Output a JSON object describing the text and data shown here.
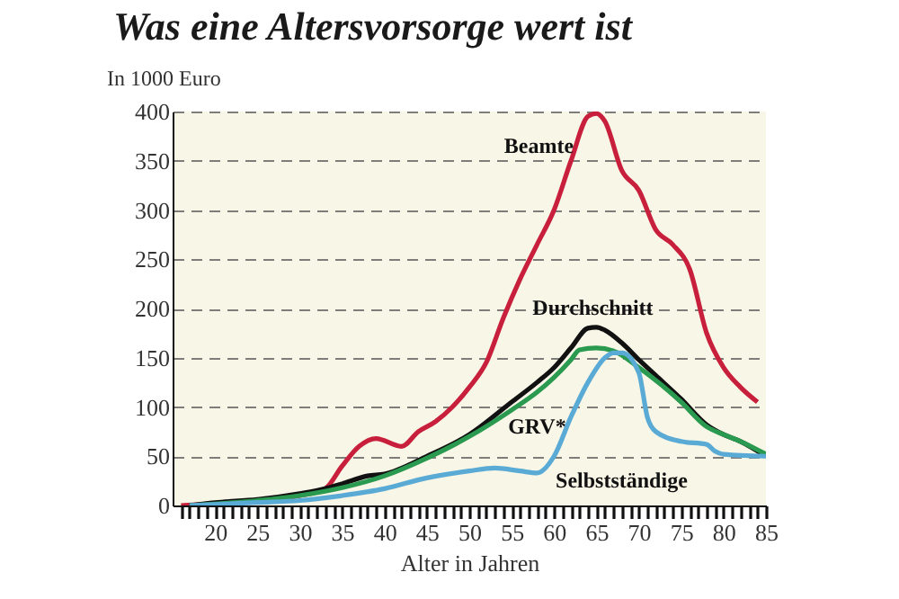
{
  "chart_data": {
    "type": "line",
    "title": "Was eine Altersvorsorge wert ist",
    "ylabel": "In 1000 Euro",
    "xlabel": "Alter in Jahren",
    "xlim": [
      15,
      85
    ],
    "ylim": [
      0,
      400
    ],
    "xticks": [
      {
        "value": 16,
        "label": null
      },
      {
        "value": 17,
        "label": null
      },
      {
        "value": 18,
        "label": null
      },
      {
        "value": 19,
        "label": null
      },
      20,
      {
        "value": 21,
        "label": null
      },
      {
        "value": 22,
        "label": null
      },
      {
        "value": 23,
        "label": null
      },
      {
        "value": 24,
        "label": null
      },
      25,
      {
        "value": 26,
        "label": null
      },
      {
        "value": 27,
        "label": null
      },
      {
        "value": 28,
        "label": null
      },
      {
        "value": 29,
        "label": null
      },
      30,
      {
        "value": 31,
        "label": null
      },
      {
        "value": 32,
        "label": null
      },
      {
        "value": 33,
        "label": null
      },
      {
        "value": 34,
        "label": null
      },
      35,
      {
        "value": 36,
        "label": null
      },
      {
        "value": 37,
        "label": null
      },
      {
        "value": 38,
        "label": null
      },
      {
        "value": 39,
        "label": null
      },
      40,
      {
        "value": 41,
        "label": null
      },
      {
        "value": 42,
        "label": null
      },
      {
        "value": 43,
        "label": null
      },
      {
        "value": 44,
        "label": null
      },
      45,
      {
        "value": 46,
        "label": null
      },
      {
        "value": 47,
        "label": null
      },
      {
        "value": 48,
        "label": null
      },
      {
        "value": 49,
        "label": null
      },
      50,
      {
        "value": 51,
        "label": null
      },
      {
        "value": 52,
        "label": null
      },
      {
        "value": 53,
        "label": null
      },
      {
        "value": 54,
        "label": null
      },
      55,
      {
        "value": 56,
        "label": null
      },
      {
        "value": 57,
        "label": null
      },
      {
        "value": 58,
        "label": null
      },
      {
        "value": 59,
        "label": null
      },
      60,
      {
        "value": 61,
        "label": null
      },
      {
        "value": 62,
        "label": null
      },
      {
        "value": 63,
        "label": null
      },
      {
        "value": 64,
        "label": null
      },
      65,
      {
        "value": 66,
        "label": null
      },
      {
        "value": 67,
        "label": null
      },
      {
        "value": 68,
        "label": null
      },
      {
        "value": 69,
        "label": null
      },
      70,
      {
        "value": 71,
        "label": null
      },
      {
        "value": 72,
        "label": null
      },
      {
        "value": 73,
        "label": null
      },
      {
        "value": 74,
        "label": null
      },
      75,
      {
        "value": 76,
        "label": null
      },
      {
        "value": 77,
        "label": null
      },
      {
        "value": 78,
        "label": null
      },
      {
        "value": 79,
        "label": null
      },
      80,
      {
        "value": 81,
        "label": null
      },
      {
        "value": 82,
        "label": null
      },
      {
        "value": 83,
        "label": null
      },
      {
        "value": 84,
        "label": null
      },
      85
    ],
    "yticks": [
      0,
      50,
      100,
      150,
      200,
      250,
      300,
      350,
      400
    ],
    "grid": "y",
    "line_style": "solid",
    "legend": false,
    "series": [
      {
        "name": "Beamte",
        "color": "#c8203c",
        "x": [
          16,
          20,
          25,
          30,
          33,
          35,
          37,
          39,
          42,
          44,
          46,
          48,
          50,
          52,
          54,
          56,
          58,
          60,
          62,
          64,
          65,
          66,
          68,
          70,
          72,
          74,
          76,
          78,
          80,
          82,
          84
        ],
        "values": [
          0,
          2,
          5,
          10,
          17,
          40,
          60,
          68,
          60,
          75,
          85,
          100,
          120,
          145,
          190,
          230,
          265,
          300,
          350,
          395,
          398,
          390,
          340,
          320,
          280,
          265,
          240,
          175,
          140,
          120,
          105
        ]
      },
      {
        "name": "Durchschnitt",
        "color": "#111111",
        "x": [
          17,
          20,
          25,
          30,
          33,
          35,
          38,
          40,
          45,
          50,
          55,
          58,
          60,
          62,
          64,
          65,
          66,
          68,
          70,
          72,
          75,
          78,
          80,
          82,
          85
        ],
        "values": [
          0,
          3,
          6,
          12,
          17,
          22,
          30,
          32,
          50,
          72,
          105,
          125,
          140,
          160,
          180,
          181,
          178,
          165,
          148,
          132,
          108,
          82,
          72,
          65,
          50
        ]
      },
      {
        "name": "GRV*",
        "color": "#2a9a50",
        "x": [
          17,
          25,
          30,
          35,
          40,
          45,
          50,
          55,
          58,
          60,
          62,
          63,
          65,
          67,
          70,
          75,
          78,
          80,
          82,
          85
        ],
        "values": [
          0,
          5,
          10,
          18,
          30,
          48,
          70,
          97,
          115,
          130,
          148,
          158,
          160,
          157,
          140,
          105,
          80,
          72,
          65,
          52
        ]
      },
      {
        "name": "Selbstständige",
        "color": "#5aaad6",
        "x": [
          17,
          25,
          30,
          35,
          40,
          45,
          50,
          53,
          56,
          58,
          60,
          62,
          64,
          66,
          67,
          68,
          70,
          71,
          72,
          75,
          78,
          79,
          80,
          85
        ],
        "values": [
          0,
          3,
          5,
          10,
          17,
          28,
          35,
          38,
          35,
          33,
          50,
          90,
          125,
          150,
          155,
          155,
          135,
          90,
          75,
          65,
          62,
          55,
          52,
          50
        ]
      }
    ]
  }
}
